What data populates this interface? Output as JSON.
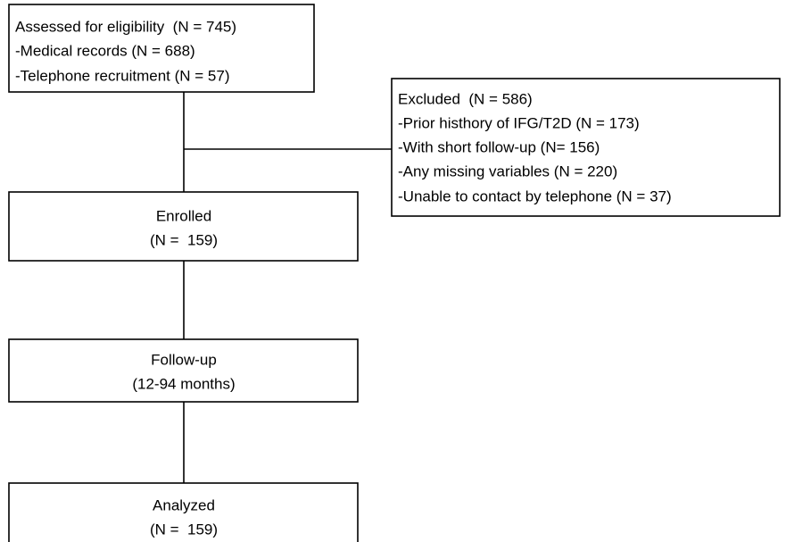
{
  "nodes": [
    {
      "lines": [
        "Assessed for eligibility  (N = 745)",
        "-Medical records (N = 688)",
        "-Telephone recruitment (N = 57)"
      ]
    },
    {
      "lines": [
        "Excluded  (N = 586)",
        "-Prior histhory of IFG/T2D (N = 173)",
        "-With short follow-up (N= 156)",
        "-Any missing variables (N = 220)",
        "-Unable to contact by telephone (N = 37)"
      ]
    },
    {
      "lines": [
        "Enrolled",
        "(N =  159)"
      ]
    },
    {
      "lines": [
        "Follow-up",
        "(12-94 months)"
      ]
    },
    {
      "lines": [
        "Analyzed",
        "(N =  159)"
      ]
    }
  ]
}
